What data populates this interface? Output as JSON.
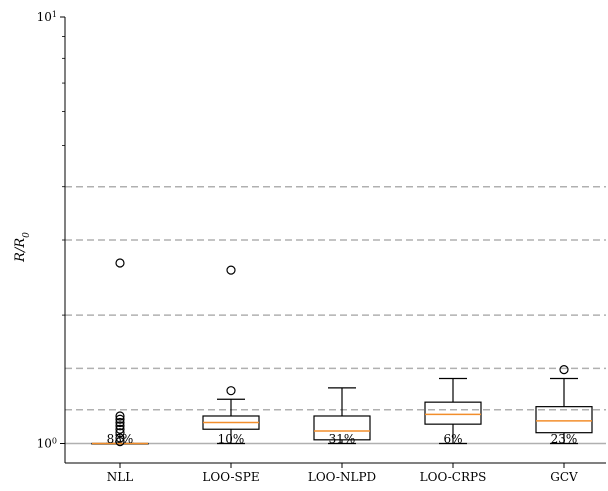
{
  "chart_data": {
    "type": "box",
    "ylabel": "R/R",
    "ylabel_subscript": "0",
    "yscale": "log",
    "ylim": [
      0.9,
      10
    ],
    "y_ticks": [
      {
        "value": 1,
        "base": "10",
        "exp": "0"
      },
      {
        "value": 10,
        "base": "10",
        "exp": "1"
      }
    ],
    "reference_lines": [
      1.2,
      1.5,
      2,
      3,
      4
    ],
    "reference_line_color": "#b0b0b0",
    "baseline": 1,
    "categories": [
      "NLL",
      "LOO-SPE",
      "LOO-NLPD",
      "LOO-CRPS",
      "GCV"
    ],
    "percent_labels": [
      "83%",
      "10%",
      "31%",
      "6%",
      "23%"
    ],
    "median_color": "#f28e2b",
    "boxes": [
      {
        "name": "NLL",
        "whislo": 1.0,
        "q1": 1.0,
        "med": 1.0,
        "q3": 1.0,
        "whishi": 1.0,
        "fliers": [
          1.01,
          1.03,
          1.06,
          1.08,
          1.1,
          1.12,
          1.14,
          1.16,
          2.65
        ]
      },
      {
        "name": "LOO-SPE",
        "whislo": 1.0,
        "q1": 1.08,
        "med": 1.12,
        "q3": 1.16,
        "whishi": 1.27,
        "fliers": [
          1.33,
          2.55
        ]
      },
      {
        "name": "LOO-NLPD",
        "whislo": 1.0,
        "q1": 1.02,
        "med": 1.07,
        "q3": 1.16,
        "whishi": 1.35,
        "fliers": []
      },
      {
        "name": "LOO-CRPS",
        "whislo": 1.0,
        "q1": 1.11,
        "med": 1.17,
        "q3": 1.25,
        "whishi": 1.42,
        "fliers": []
      },
      {
        "name": "GCV",
        "whislo": 1.0,
        "q1": 1.06,
        "med": 1.13,
        "q3": 1.22,
        "whishi": 1.42,
        "fliers": [
          1.49
        ]
      }
    ]
  }
}
